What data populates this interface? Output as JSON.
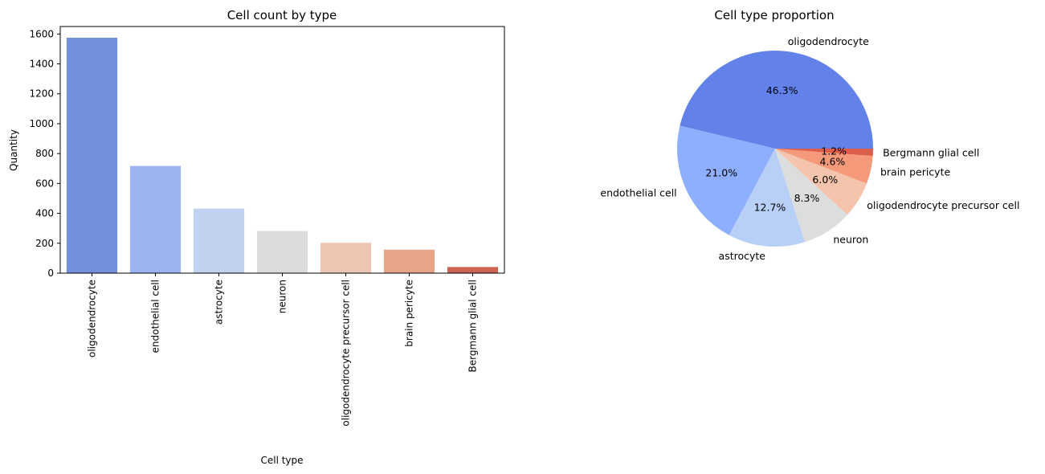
{
  "chart_data": [
    {
      "type": "bar",
      "title": "Cell count by type",
      "xlabel": "Cell type",
      "ylabel": "Quantity",
      "categories": [
        "oligodendrocyte",
        "endothelial cell",
        "astrocyte",
        "neuron",
        "oligodendrocyte precursor cell",
        "brain pericyte",
        "Bergmann glial cell"
      ],
      "values": [
        1575,
        717,
        432,
        282,
        203,
        157,
        41
      ],
      "colors": [
        "#7390dc",
        "#9ab5f2",
        "#c0d2f0",
        "#dcdcdc",
        "#ecc6b2",
        "#e7a489",
        "#cd6352"
      ],
      "ylim": [
        0,
        1650
      ],
      "yticks": [
        0,
        200,
        400,
        600,
        800,
        1000,
        1200,
        1400,
        1600
      ],
      "grid": false,
      "legend": "none"
    },
    {
      "type": "pie",
      "title": "Cell type proportion",
      "labels": [
        "oligodendrocyte",
        "endothelial cell",
        "astrocyte",
        "neuron",
        "oligodendrocyte precursor cell",
        "brain pericyte",
        "Bergmann glial cell"
      ],
      "values": [
        46.3,
        21.0,
        12.7,
        8.3,
        6.0,
        4.6,
        1.2
      ],
      "pct_labels": [
        "46.3%",
        "21.0%",
        "12.7%",
        "8.3%",
        "6.0%",
        "4.6%",
        "1.2%"
      ],
      "colors": [
        "#6282ea",
        "#8daffd",
        "#b8cff8",
        "#dcdddd",
        "#f5c4ac",
        "#f49a7b",
        "#dc5d4a"
      ],
      "start_angle": 0,
      "direction": "counterclockwise",
      "legend": "none"
    }
  ]
}
